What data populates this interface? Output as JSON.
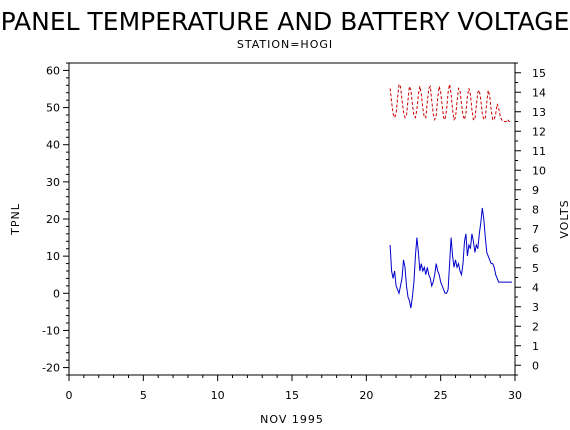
{
  "chart_data": {
    "type": "line",
    "title": "PANEL TEMPERATURE AND BATTERY VOLTAGE",
    "subtitle": "STATION=HOGI",
    "xlabel": "NOV 1995",
    "ylabel_left": "TPNL",
    "ylabel_right": "VOLTS",
    "xlim": [
      0,
      30
    ],
    "ylim_left": [
      -22,
      62
    ],
    "ylim_right": [
      -0.5,
      15.5
    ],
    "x_ticks": [
      0,
      5,
      10,
      15,
      20,
      25,
      30
    ],
    "y_left_ticks": [
      -20,
      -10,
      0,
      10,
      20,
      30,
      40,
      50,
      60
    ],
    "y_right_ticks": [
      0,
      1,
      2,
      3,
      4,
      5,
      6,
      7,
      8,
      9,
      10,
      11,
      12,
      13,
      14,
      15
    ],
    "grid": false,
    "series": [
      {
        "axis": "left",
        "color": "#0000cc",
        "style": "solid",
        "x": [
          21.6,
          21.7,
          21.8,
          21.9,
          22.0,
          22.1,
          22.2,
          22.3,
          22.4,
          22.5,
          22.6,
          22.7,
          22.8,
          22.9,
          23.0,
          23.1,
          23.2,
          23.3,
          23.4,
          23.5,
          23.6,
          23.7,
          23.8,
          23.9,
          24.0,
          24.1,
          24.2,
          24.3,
          24.4,
          24.5,
          24.6,
          24.7,
          24.8,
          24.9,
          25.0,
          25.1,
          25.2,
          25.3,
          25.4,
          25.5,
          25.6,
          25.7,
          25.8,
          25.9,
          26.0,
          26.1,
          26.2,
          26.3,
          26.4,
          26.5,
          26.6,
          26.7,
          26.8,
          26.9,
          27.0,
          27.1,
          27.2,
          27.3,
          27.4,
          27.5,
          27.6,
          27.7,
          27.8,
          27.9,
          28.0,
          28.1,
          28.2,
          28.3,
          28.4,
          28.5,
          28.6,
          28.7,
          28.8,
          28.9,
          29.0,
          29.1,
          29.2,
          29.3,
          29.4,
          29.5,
          29.6,
          29.7,
          29.8
        ],
        "y": [
          13,
          6,
          4,
          6,
          2,
          1,
          0,
          2,
          4,
          9,
          7,
          2,
          -1,
          -2,
          -4,
          -1,
          3,
          10,
          15,
          11,
          6,
          8,
          6,
          7,
          5,
          7,
          5,
          4,
          2,
          3,
          5,
          8,
          6,
          5,
          3,
          2,
          1,
          0,
          0,
          1,
          8,
          15,
          10,
          7,
          9,
          7,
          8,
          6,
          5,
          8,
          14,
          16,
          10,
          13,
          12,
          16,
          14,
          11,
          13,
          12,
          16,
          19,
          23,
          20,
          15,
          11,
          10,
          9,
          8,
          8,
          7,
          5,
          4,
          3,
          3,
          3,
          3,
          3,
          3,
          3,
          3,
          3,
          3
        ]
      },
      {
        "axis": "right",
        "color": "#cc0000",
        "style": "dashed",
        "x": [
          21.6,
          21.7,
          21.8,
          21.9,
          22.0,
          22.1,
          22.2,
          22.3,
          22.4,
          22.5,
          22.6,
          22.7,
          22.8,
          22.9,
          23.0,
          23.1,
          23.2,
          23.3,
          23.4,
          23.5,
          23.6,
          23.7,
          23.8,
          23.9,
          24.0,
          24.1,
          24.2,
          24.3,
          24.4,
          24.5,
          24.6,
          24.7,
          24.8,
          24.9,
          25.0,
          25.1,
          25.2,
          25.3,
          25.4,
          25.5,
          25.6,
          25.7,
          25.8,
          25.9,
          26.0,
          26.1,
          26.2,
          26.3,
          26.4,
          26.5,
          26.6,
          26.7,
          26.8,
          26.9,
          27.0,
          27.1,
          27.2,
          27.3,
          27.4,
          27.5,
          27.6,
          27.7,
          27.8,
          27.9,
          28.0,
          28.1,
          28.2,
          28.3,
          28.4,
          28.5,
          28.6,
          28.7,
          28.8,
          28.9,
          29.0,
          29.1,
          29.2,
          29.3,
          29.4,
          29.5,
          29.6,
          29.7,
          29.8
        ],
        "y": [
          14.2,
          13.5,
          12.9,
          12.7,
          12.9,
          13.7,
          14.4,
          14.3,
          13.6,
          13.0,
          12.7,
          12.8,
          13.6,
          14.3,
          14.1,
          13.4,
          12.8,
          12.7,
          13.1,
          13.9,
          14.3,
          13.9,
          13.2,
          12.7,
          12.7,
          13.5,
          14.2,
          14.3,
          13.6,
          12.9,
          12.6,
          12.8,
          13.7,
          14.3,
          14.0,
          13.3,
          12.7,
          12.6,
          13.1,
          14.0,
          14.4,
          13.9,
          13.1,
          12.6,
          12.7,
          13.5,
          14.2,
          14.1,
          13.4,
          12.8,
          12.6,
          12.9,
          13.8,
          14.2,
          13.9,
          13.1,
          12.6,
          12.6,
          13.3,
          14.0,
          14.1,
          13.6,
          12.9,
          12.6,
          12.7,
          13.5,
          14.1,
          13.8,
          13.1,
          12.6,
          12.6,
          12.9,
          13.4,
          13.2,
          12.8,
          12.6,
          12.5,
          12.5,
          12.5,
          12.6,
          12.5,
          12.5,
          12.5
        ]
      }
    ]
  }
}
